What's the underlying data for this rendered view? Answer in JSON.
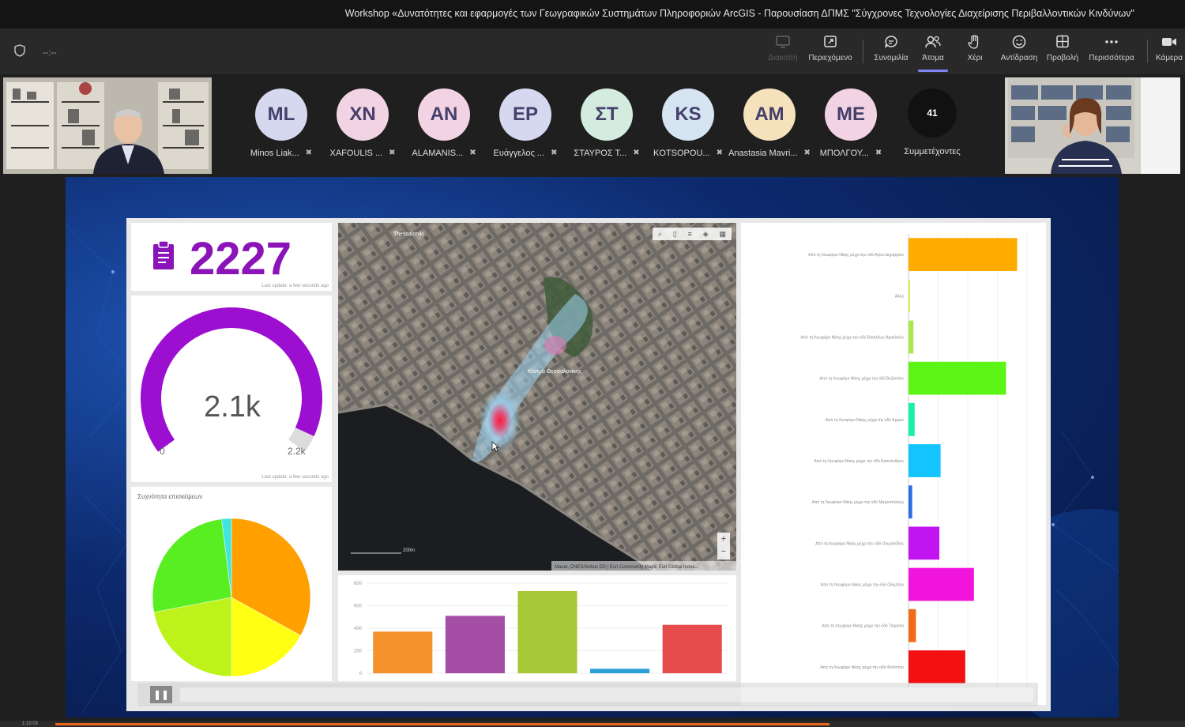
{
  "window": {
    "title": "Workshop «Δυνατότητες και εφαρμογές των Γεωγραφικών Συστημάτων Πληροφοριών ArcGIS - Παρουσίαση ΔΠΜΣ \"Σύγχρονες Τεχνολογίες Διαχείρισης Περιβαλλοντικών Κινδύνων\""
  },
  "toolbar": {
    "timer": "--:--",
    "items": [
      {
        "label": "Διακοπή",
        "icon": "screen-stop-icon"
      },
      {
        "label": "Περιεχόμενο",
        "icon": "share-content-icon"
      },
      {
        "label": "Συνομιλία",
        "icon": "chat-icon"
      },
      {
        "label": "Άτομα",
        "icon": "people-icon"
      },
      {
        "label": "Χέρι",
        "icon": "raise-hand-icon"
      },
      {
        "label": "Αντίδραση",
        "icon": "reaction-smiley-icon"
      },
      {
        "label": "Προβολή",
        "icon": "view-grid-icon"
      },
      {
        "label": "Περισσότερα",
        "icon": "more-dots-icon"
      },
      {
        "label": "Κάμερα",
        "icon": "camera-icon"
      }
    ]
  },
  "participants": [
    {
      "initials": "ML",
      "name": "Minos Liak...",
      "color": "#d6d8ef"
    },
    {
      "initials": "XN",
      "name": "XAFOULIS ...",
      "color": "#f2d3e3"
    },
    {
      "initials": "AN",
      "name": "ALAMANIS...",
      "color": "#f2d3e3"
    },
    {
      "initials": "EP",
      "name": "Ευάγγελος ...",
      "color": "#d6d8ef"
    },
    {
      "initials": "ΣΤ",
      "name": "ΣΤΑΥΡΟΣ Τ...",
      "color": "#d4ecdf"
    },
    {
      "initials": "KS",
      "name": "KOTSOPOU...",
      "color": "#d6e4f2"
    },
    {
      "initials": "AM",
      "name": "Anastasia Mavri...",
      "color": "#f5e2bd"
    },
    {
      "initials": "ME",
      "name": "ΜΠΟΛΓΟΥ...",
      "color": "#f2d3e3"
    }
  ],
  "participants_count": {
    "count": "41",
    "label": "Συμμετέχοντες"
  },
  "dashboard": {
    "kpi_value": "2227",
    "gauge": {
      "value_label": "2.1k",
      "min": "0",
      "max": "2.2k",
      "fraction": 0.955,
      "color": "#9c0fd1"
    },
    "pie_title": "Συχνότητα επισκέψεων",
    "pie_slices": [
      {
        "value": 0.33,
        "color": "#ff9f00"
      },
      {
        "value": 0.17,
        "color": "#ffff14"
      },
      {
        "value": 0.22,
        "color": "#bef21b"
      },
      {
        "value": 0.26,
        "color": "#59ee22"
      },
      {
        "value": 0.02,
        "color": "#3fe6e0"
      }
    ],
    "map": {
      "labels": [
        "Thessaloniki",
        "Κέντρο Θεσσαλονίκης"
      ],
      "attribution": "Maxar, CNES/Airbus DS | Esri Community Maps, Esri Global Icons...",
      "scale": "200m"
    },
    "column_chart": {
      "type": "bar",
      "ylim": [
        0,
        800
      ],
      "yticks": [
        "800",
        "600",
        "400",
        "200",
        "0"
      ],
      "values": [
        370,
        510,
        730,
        40,
        430
      ],
      "colors": [
        "#f5922b",
        "#a44ea5",
        "#a6c837",
        "#2ba0d7",
        "#e74c4c"
      ]
    },
    "bar_chart": {
      "type": "bar",
      "categories": [
        "Από τη Λεωφόρο Νίκης μέχρι την οδό Αγίου Δημητρίου",
        "Άλλο",
        "Από τη Λεωφόρο Νίκης μέχρι την οδό Βασιλέως Ηρακλείου",
        "Από τη Λεωφόρο Νίκης μέχρι την οδό Βυζαντίου",
        "Από τη Λεωφόρο Νίκης μέχρι την οδό Ερμού",
        "Από τη Λεωφόρο Νίκης μέχρι την οδό Κασσάνδρου",
        "Από τη Λεωφόρο Νίκης μέχρι την οδό Μητροπόλεως",
        "Από τη Λεωφόρο Νίκης μέχρι την οδό Ολυμπιάδος",
        "Από τη Λεωφόρο Νίκης μέχρι την οδό Ολύμπου",
        "Από τη Λεωφόρο Νίκης μέχρι την οδό Τσιμισκή",
        "Από τη Λεωφόρο Νίκης μέχρι την οδό Φιλίππου"
      ],
      "values": [
        440,
        5,
        20,
        395,
        25,
        130,
        15,
        125,
        265,
        30,
        230
      ],
      "colors": [
        "#ffab00",
        "#d4f55a",
        "#a8e84a",
        "#5cf516",
        "#16f0a8",
        "#14c4ff",
        "#2b6ee6",
        "#c214f0",
        "#f014dc",
        "#f26b1c",
        "#f21010"
      ],
      "xlim": [
        0,
        480
      ]
    }
  },
  "playback": {
    "timecode": "1:10:03"
  }
}
